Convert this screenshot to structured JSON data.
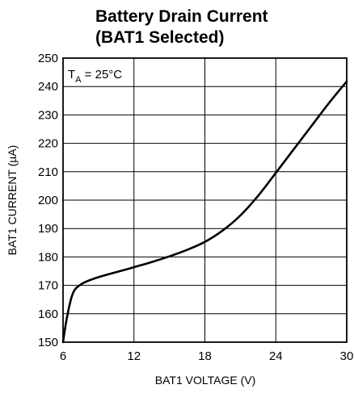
{
  "chart_data": {
    "type": "line",
    "title_line1": "Battery Drain Current",
    "title_line2": "(BAT1 Selected)",
    "xlabel": "BAT1 VOLTAGE (V)",
    "ylabel": "BAT1 CURRENT (µA)",
    "annotation": {
      "main": "T",
      "sub": "A",
      "rest": " = 25°C"
    },
    "xlim": [
      6,
      30
    ],
    "ylim": [
      150,
      250
    ],
    "x_ticks": [
      6,
      12,
      18,
      24,
      30
    ],
    "y_ticks": [
      150,
      160,
      170,
      180,
      190,
      200,
      210,
      220,
      230,
      240,
      250
    ],
    "grid": true,
    "series": [
      {
        "x": [
          6.0,
          6.3,
          6.7,
          7.0,
          7.4,
          7.8,
          8.5,
          9.5,
          11,
          12,
          13.5,
          15,
          16.5,
          18,
          19.5,
          21,
          22.5,
          24,
          25.5,
          27,
          28.5,
          30
        ],
        "y": [
          150.0,
          158.0,
          165.5,
          168.5,
          170.0,
          171.0,
          172.2,
          173.5,
          175.2,
          176.4,
          178.2,
          180.2,
          182.5,
          185.3,
          189.3,
          194.6,
          201.5,
          209.6,
          217.8,
          226.0,
          234.2,
          241.8
        ]
      }
    ]
  }
}
